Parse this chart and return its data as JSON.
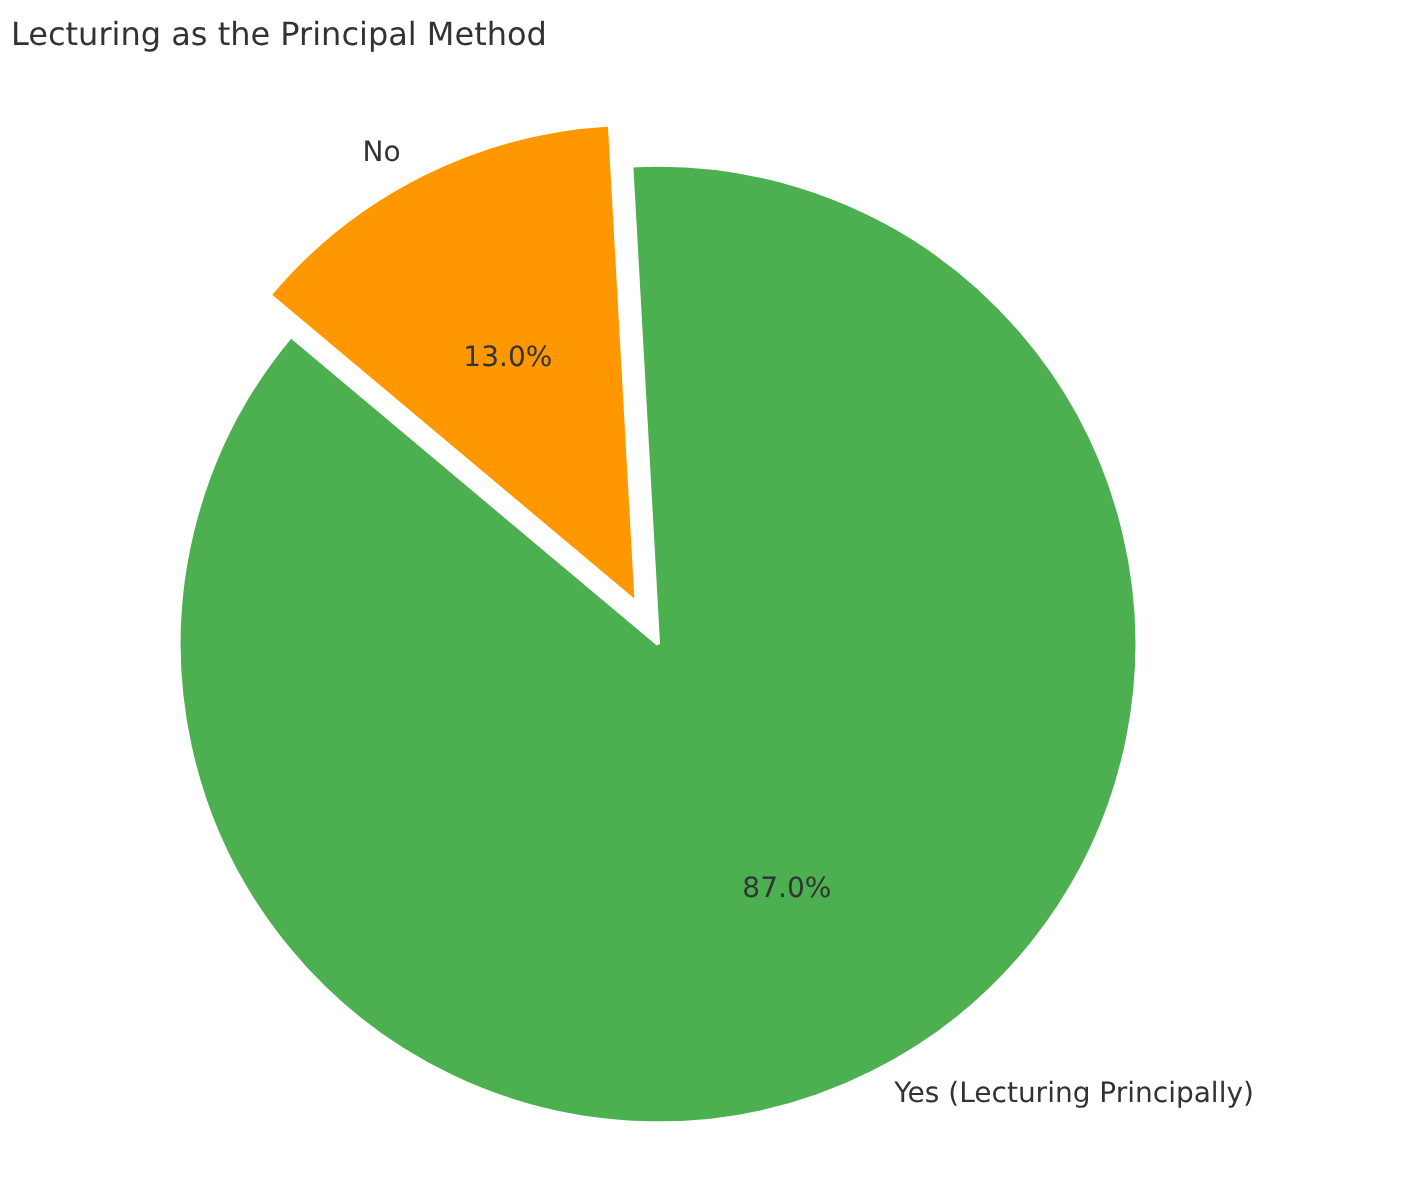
{
  "chart_data": {
    "type": "pie",
    "title": "Lecturing as the Principal Method",
    "categories": [
      "Yes (Lecturing Principally)",
      "No"
    ],
    "values": [
      87,
      13
    ],
    "colors": [
      "#4caf50",
      "#ff9800"
    ],
    "value_labels": [
      "87.0%",
      "13.0%"
    ]
  }
}
